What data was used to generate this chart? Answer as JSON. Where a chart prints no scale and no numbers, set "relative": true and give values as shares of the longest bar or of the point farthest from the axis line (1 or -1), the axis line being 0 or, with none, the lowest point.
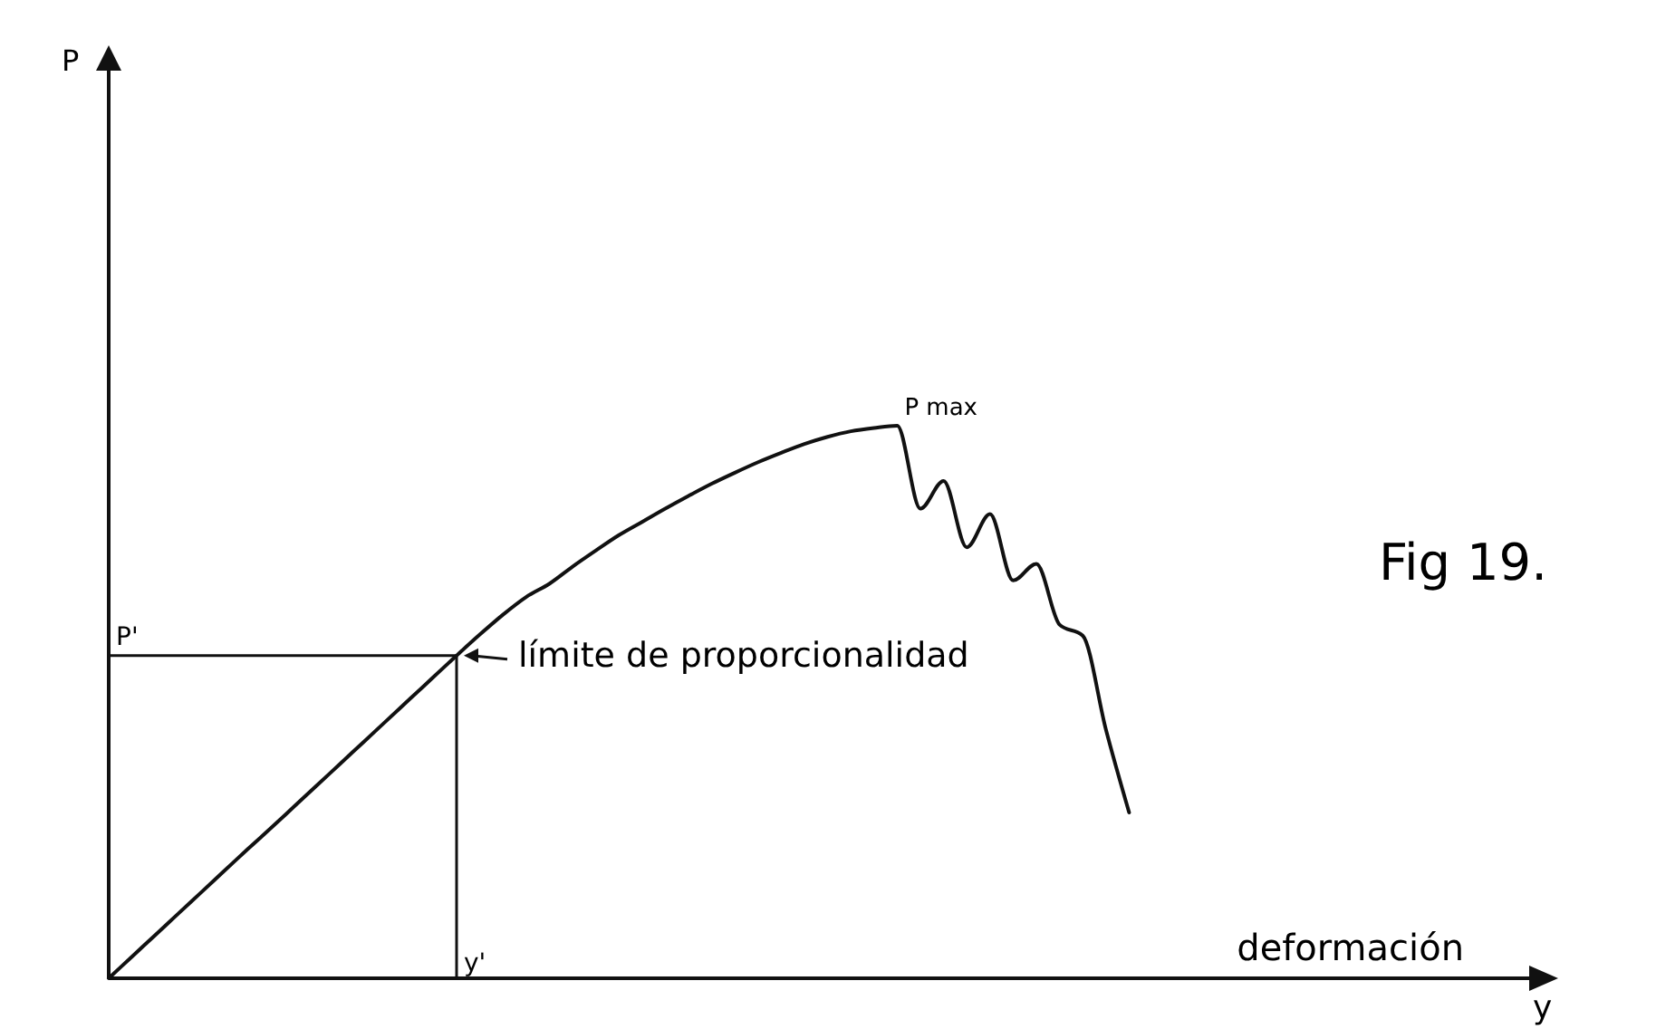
{
  "chart_data": {
    "type": "line",
    "relative": true,
    "title": "Fig 19.",
    "xlabel": "deformación",
    "categories": [
      null,
      null,
      null,
      null,
      null,
      null,
      null,
      null,
      null,
      null,
      null,
      null,
      null,
      null,
      null,
      null,
      null,
      null,
      null,
      null,
      null,
      null,
      null,
      null,
      null,
      null,
      null,
      null,
      null,
      null,
      null,
      null,
      null,
      null,
      null,
      null,
      null,
      null,
      null,
      null,
      null,
      null,
      null,
      null,
      null,
      null,
      null,
      null,
      null,
      null,
      null,
      null,
      null,
      null,
      null,
      null,
      null,
      null,
      null,
      null,
      null
    ],
    "series": [
      {
        "color": "#111111",
        "values": [
          0,
          0.039,
          0.078,
          0.117,
          0.156,
          0.195,
          0.234,
          0.272,
          0.311,
          0.35,
          0.389,
          0.428,
          0.467,
          0.506,
          0.545,
          0.584,
          0.622,
          0.658,
          0.69,
          0.714,
          0.745,
          0.774,
          0.802,
          0.826,
          0.85,
          0.873,
          0.895,
          0.915,
          0.934,
          0.951,
          0.967,
          0.98,
          0.99,
          0.996,
          1,
          0.85,
          0.9,
          0.78,
          0.84,
          0.72,
          0.75,
          0.64,
          0.62,
          0.45,
          0.3,
          null,
          null,
          null,
          null,
          null,
          null,
          null,
          null,
          null,
          null,
          null,
          null,
          null,
          null,
          null,
          null
        ]
      }
    ],
    "ref_lines": [
      {
        "axis": "y",
        "value": 0.584,
        "label": "P'",
        "color": "#111111"
      }
    ],
    "annotations": [
      "P max",
      "límite de proporcionalidad",
      "y",
      "y'",
      "P"
    ],
    "grid": false,
    "marker": "none",
    "line_style": "solid"
  }
}
